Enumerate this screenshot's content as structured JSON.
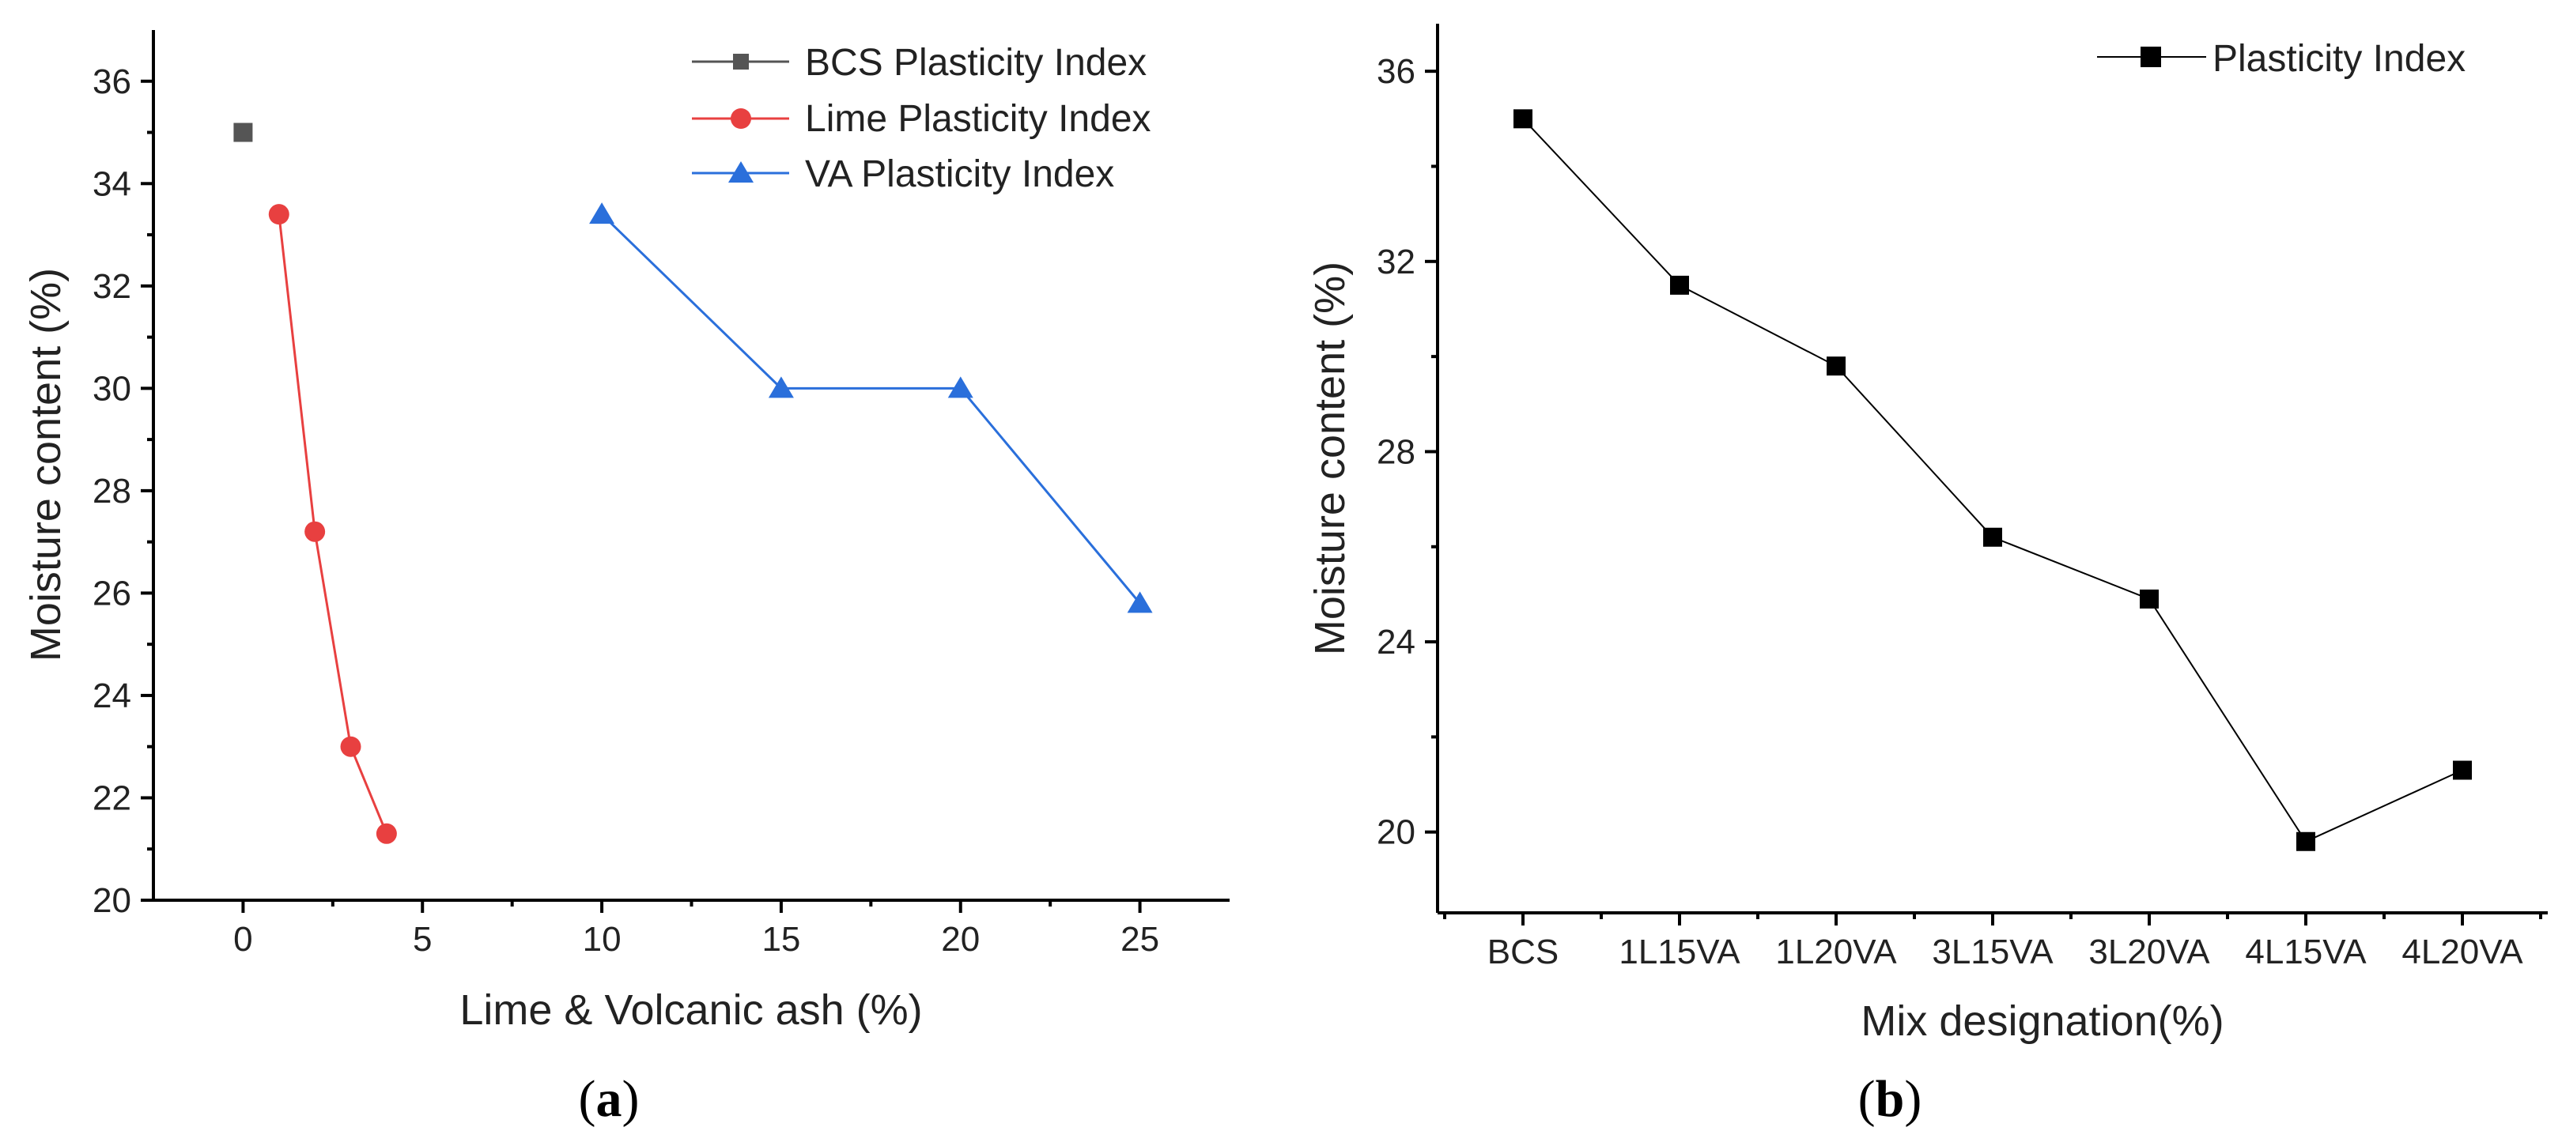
{
  "chart_data": [
    {
      "type": "line",
      "caption": "a",
      "xlabel": "Lime & Volcanic ash (%)",
      "ylabel": "Moisture content (%)",
      "xlim": [
        -2.5,
        27.5
      ],
      "ylim": [
        20,
        37
      ],
      "xticks": [
        0,
        5,
        10,
        15,
        20,
        25
      ],
      "yticks": [
        20,
        22,
        24,
        26,
        28,
        30,
        32,
        34,
        36
      ],
      "legend_position": "top-right",
      "series": [
        {
          "name": "BCS Plasticity Index",
          "marker": "square",
          "color": "#555555",
          "x": [
            0
          ],
          "y": [
            35
          ]
        },
        {
          "name": "Lime Plasticity Index",
          "marker": "circle",
          "color": "#e84040",
          "x": [
            1,
            2,
            3,
            4
          ],
          "y": [
            33.4,
            27.2,
            23,
            21.3
          ]
        },
        {
          "name": "VA Plasticity Index",
          "marker": "triangle",
          "color": "#2a6fdb",
          "x": [
            10,
            15,
            20,
            25
          ],
          "y": [
            33.4,
            30,
            30,
            25.8
          ]
        }
      ]
    },
    {
      "type": "line",
      "caption": "b",
      "xlabel": "Mix designation(%)",
      "ylabel": "Moisture content (%)",
      "ylim": [
        18.3,
        37
      ],
      "yticks": [
        20,
        24,
        28,
        32,
        36
      ],
      "categories": [
        "BCS",
        "1L15VA",
        "1L20VA",
        "3L15VA",
        "3L20VA",
        "4L15VA",
        "4L20VA"
      ],
      "legend_position": "top-right",
      "series": [
        {
          "name": "Plasticity Index",
          "marker": "square",
          "color": "#000000",
          "values": [
            35,
            31.5,
            29.8,
            26.2,
            24.9,
            19.8,
            21.3
          ]
        }
      ]
    }
  ]
}
